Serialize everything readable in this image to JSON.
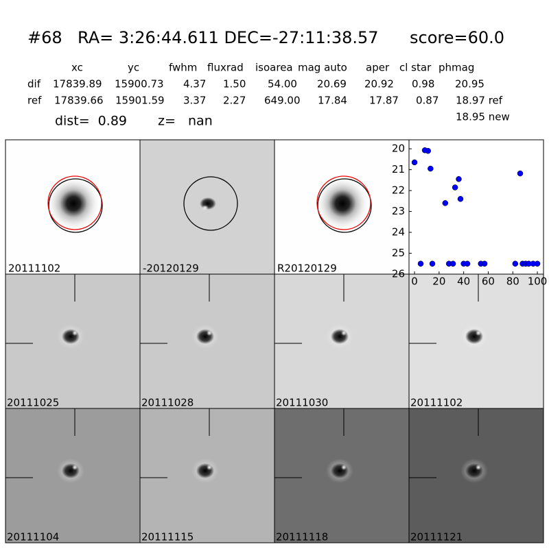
{
  "header": {
    "object": "#68",
    "coords": "RA= 3:26:44.611 DEC=-27:11:38.57",
    "score": "score=60.0"
  },
  "table": {
    "columns": [
      "xc",
      "yc",
      "fwhm",
      "fluxrad",
      "isoarea",
      "mag auto",
      "aper",
      "cl star",
      "phmag"
    ],
    "rows": [
      [
        "dif",
        "17839.89",
        "15900.73",
        "4.37",
        "1.50",
        "54.00",
        "20.69",
        "20.92",
        "0.98",
        "20.95"
      ],
      [
        "ref",
        "17839.66",
        "15901.59",
        "3.37",
        "2.27",
        "649.00",
        "17.84",
        "17.87",
        "0.87",
        "18.97 ref"
      ]
    ],
    "extra": "18.95 new"
  },
  "dist": "dist=  0.89",
  "z": "z=   nan",
  "top_panels": [
    {
      "label": "20111102"
    },
    {
      "label": "-20120129"
    },
    {
      "label": "R20120129"
    }
  ],
  "stamp_panels": [
    {
      "label": "20111025"
    },
    {
      "label": "20111028"
    },
    {
      "label": "20111030"
    },
    {
      "label": "20111102",
      "label_color": "#ff0000"
    },
    {
      "label": "20111104"
    },
    {
      "label": "20111115"
    },
    {
      "label": "20111118"
    },
    {
      "label": "20111121"
    }
  ],
  "chart_data": {
    "type": "scatter",
    "color": "#0000ff",
    "x": [
      0,
      8.4,
      11,
      13,
      25,
      33,
      36,
      37.4,
      86,
      5,
      14.5,
      28,
      31.3,
      40,
      43,
      54,
      57,
      82,
      88,
      90.5,
      93,
      96.6,
      100
    ],
    "values": [
      20.65,
      20.07,
      20.1,
      20.95,
      22.6,
      21.85,
      21.45,
      22.4,
      21.18,
      25.5,
      25.5,
      25.5,
      25.5,
      25.5,
      25.5,
      25.5,
      25.5,
      25.5,
      25.5,
      25.5,
      25.5,
      25.5,
      25.5
    ],
    "xlim": [
      -4.5,
      105
    ],
    "ylim": [
      26,
      19.57
    ],
    "xticks": [
      0,
      20,
      40,
      60,
      80,
      100
    ],
    "yticks": [
      20,
      21,
      22,
      23,
      24,
      25,
      26
    ]
  }
}
